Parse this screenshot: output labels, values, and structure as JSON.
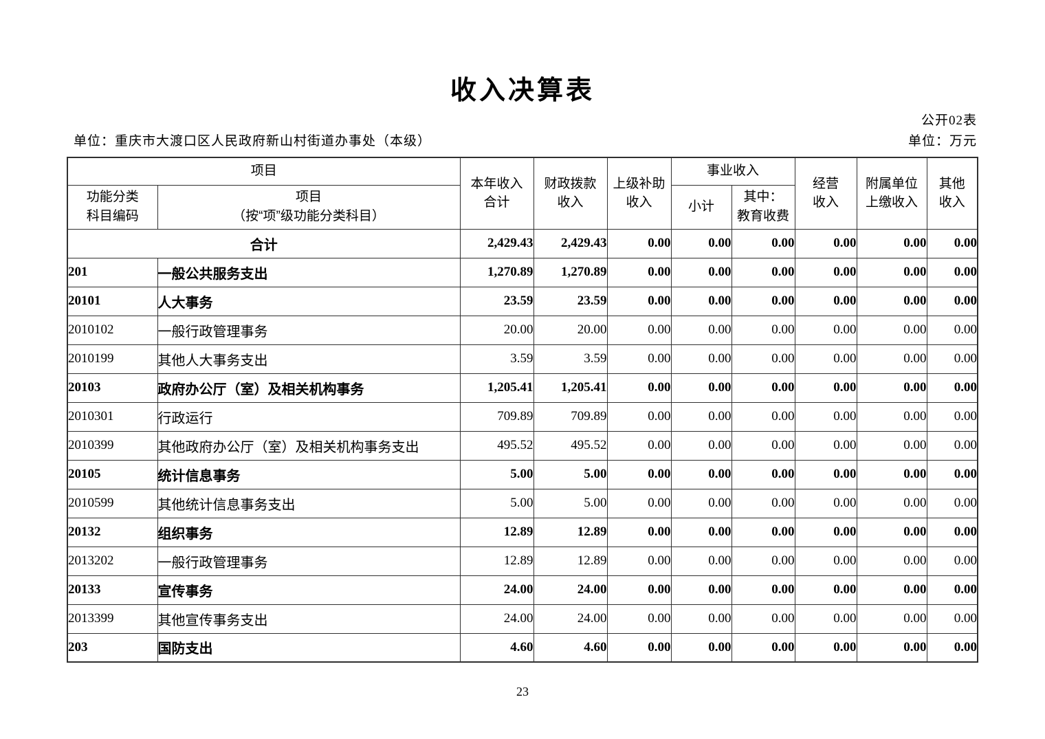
{
  "page": {
    "title": "收入决算表",
    "public_label": "公开02表",
    "unit_line_left": "单位：重庆市大渡口区人民政府新山村街道办事处（本级）",
    "unit_line_right": "单位：万元",
    "page_number": "23"
  },
  "table": {
    "header": {
      "project_group": "项目",
      "code_col": "功能分类\n科目编码",
      "project_detail_col": "项目\n（按“项”级功能分类科目）",
      "total_income_col": "本年收入\n合计",
      "fiscal_appropriation_col": "财政拨款\n收入",
      "superior_subsidy_col": "上级补助\n收入",
      "business_income_group": "事业收入",
      "business_subtotal_col": "小计",
      "education_fee_col": "其中：\n教育收费",
      "operating_income_col": "经营\n收入",
      "affiliated_units_col": "附属单位\n上缴收入",
      "other_income_col": "其他\n收入"
    },
    "rows": [
      {
        "code": "",
        "name": "合计",
        "bold": true,
        "total": true,
        "values": [
          "2,429.43",
          "2,429.43",
          "0.00",
          "0.00",
          "0.00",
          "0.00",
          "0.00",
          "0.00"
        ]
      },
      {
        "code": "201",
        "name": "一般公共服务支出",
        "bold": true,
        "total": false,
        "values": [
          "1,270.89",
          "1,270.89",
          "0.00",
          "0.00",
          "0.00",
          "0.00",
          "0.00",
          "0.00"
        ]
      },
      {
        "code": "20101",
        "name": "人大事务",
        "bold": true,
        "total": false,
        "values": [
          "23.59",
          "23.59",
          "0.00",
          "0.00",
          "0.00",
          "0.00",
          "0.00",
          "0.00"
        ]
      },
      {
        "code": "2010102",
        "name": "一般行政管理事务",
        "bold": false,
        "total": false,
        "values": [
          "20.00",
          "20.00",
          "0.00",
          "0.00",
          "0.00",
          "0.00",
          "0.00",
          "0.00"
        ]
      },
      {
        "code": "2010199",
        "name": "其他人大事务支出",
        "bold": false,
        "total": false,
        "values": [
          "3.59",
          "3.59",
          "0.00",
          "0.00",
          "0.00",
          "0.00",
          "0.00",
          "0.00"
        ]
      },
      {
        "code": "20103",
        "name": "政府办公厅（室）及相关机构事务",
        "bold": true,
        "total": false,
        "values": [
          "1,205.41",
          "1,205.41",
          "0.00",
          "0.00",
          "0.00",
          "0.00",
          "0.00",
          "0.00"
        ]
      },
      {
        "code": "2010301",
        "name": "行政运行",
        "bold": false,
        "total": false,
        "values": [
          "709.89",
          "709.89",
          "0.00",
          "0.00",
          "0.00",
          "0.00",
          "0.00",
          "0.00"
        ]
      },
      {
        "code": "2010399",
        "name": "其他政府办公厅（室）及相关机构事务支出",
        "bold": false,
        "total": false,
        "values": [
          "495.52",
          "495.52",
          "0.00",
          "0.00",
          "0.00",
          "0.00",
          "0.00",
          "0.00"
        ]
      },
      {
        "code": "20105",
        "name": "统计信息事务",
        "bold": true,
        "total": false,
        "values": [
          "5.00",
          "5.00",
          "0.00",
          "0.00",
          "0.00",
          "0.00",
          "0.00",
          "0.00"
        ]
      },
      {
        "code": "2010599",
        "name": "其他统计信息事务支出",
        "bold": false,
        "total": false,
        "values": [
          "5.00",
          "5.00",
          "0.00",
          "0.00",
          "0.00",
          "0.00",
          "0.00",
          "0.00"
        ]
      },
      {
        "code": "20132",
        "name": "组织事务",
        "bold": true,
        "total": false,
        "values": [
          "12.89",
          "12.89",
          "0.00",
          "0.00",
          "0.00",
          "0.00",
          "0.00",
          "0.00"
        ]
      },
      {
        "code": "2013202",
        "name": "一般行政管理事务",
        "bold": false,
        "total": false,
        "values": [
          "12.89",
          "12.89",
          "0.00",
          "0.00",
          "0.00",
          "0.00",
          "0.00",
          "0.00"
        ]
      },
      {
        "code": "20133",
        "name": "宣传事务",
        "bold": true,
        "total": false,
        "values": [
          "24.00",
          "24.00",
          "0.00",
          "0.00",
          "0.00",
          "0.00",
          "0.00",
          "0.00"
        ]
      },
      {
        "code": "2013399",
        "name": "其他宣传事务支出",
        "bold": false,
        "total": false,
        "values": [
          "24.00",
          "24.00",
          "0.00",
          "0.00",
          "0.00",
          "0.00",
          "0.00",
          "0.00"
        ]
      },
      {
        "code": "203",
        "name": "国防支出",
        "bold": true,
        "total": false,
        "values": [
          "4.60",
          "4.60",
          "0.00",
          "0.00",
          "0.00",
          "0.00",
          "0.00",
          "0.00"
        ]
      }
    ]
  }
}
